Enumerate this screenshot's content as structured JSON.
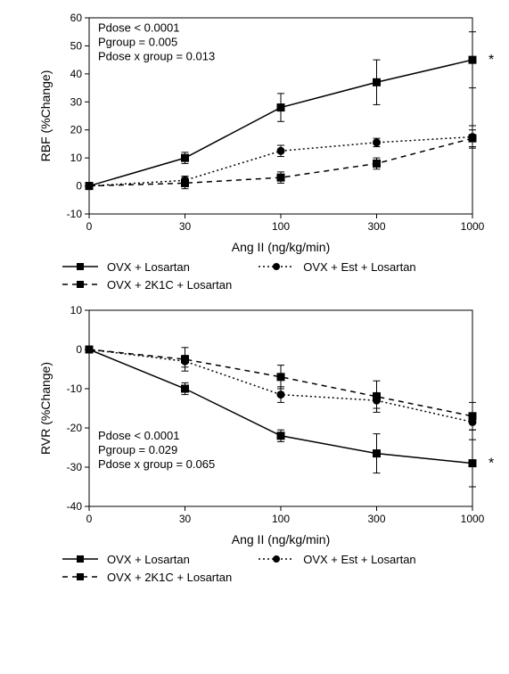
{
  "categories": [
    "0",
    "30",
    "100",
    "300",
    "1000"
  ],
  "x_positions": [
    0,
    1,
    2,
    3,
    4
  ],
  "xlabel": "Ang II (ng/kg/min)",
  "series_defs": {
    "s1": {
      "label": "OVX + Losartan",
      "marker": "square",
      "dash": "solid",
      "color": "#000000"
    },
    "s2": {
      "label": "OVX + 2K1C + Losartan",
      "marker": "square",
      "dash": "6,5",
      "color": "#000000"
    },
    "s3": {
      "label": "OVX + Est + Losartan",
      "marker": "circle",
      "dash": "2,3",
      "color": "#000000"
    }
  },
  "charts": [
    {
      "id": "rbf",
      "ylabel": "RBF (%Change)",
      "ylim": [
        -10,
        60
      ],
      "ytick_step": 10,
      "stats": [
        "Pdose < 0.0001",
        "Pgroup = 0.005",
        "Pdose x group = 0.013"
      ],
      "stats_pos": {
        "x": 0.15,
        "y_top": 55
      },
      "star_series": "s1",
      "series": {
        "s1": {
          "y": [
            0,
            10,
            28,
            37,
            45
          ],
          "err": [
            0,
            2,
            5,
            8,
            10
          ]
        },
        "s2": {
          "y": [
            0,
            1,
            3,
            8,
            17
          ],
          "err": [
            0,
            2,
            2,
            2,
            3
          ]
        },
        "s3": {
          "y": [
            0,
            2,
            12.5,
            15.5,
            17.5
          ],
          "err": [
            0,
            1.5,
            2,
            1.5,
            4
          ]
        }
      }
    },
    {
      "id": "rvr",
      "ylabel": "RVR (%Change)",
      "ylim": [
        -40,
        10
      ],
      "ytick_step": 10,
      "stats": [
        "Pdose < 0.0001",
        "Pgroup = 0.029",
        "Pdose x group = 0.065"
      ],
      "stats_pos": {
        "x": 0.15,
        "y_top": -23
      },
      "star_series": "s1",
      "series": {
        "s1": {
          "y": [
            0,
            -10,
            -22,
            -26.5,
            -29
          ],
          "err": [
            0,
            1.5,
            1.5,
            5,
            6
          ]
        },
        "s2": {
          "y": [
            0,
            -2.5,
            -7,
            -12,
            -17
          ],
          "err": [
            0,
            3,
            3,
            4,
            3.5
          ]
        },
        "s3": {
          "y": [
            0,
            -3,
            -11.5,
            -13,
            -18.5
          ],
          "err": [
            0,
            1.5,
            2,
            2,
            2
          ]
        }
      }
    }
  ],
  "colors": {
    "axis": "#000000",
    "background": "#ffffff"
  },
  "font_sizes": {
    "axis_label": 14,
    "tick": 12,
    "stats": 13,
    "legend": 13
  }
}
